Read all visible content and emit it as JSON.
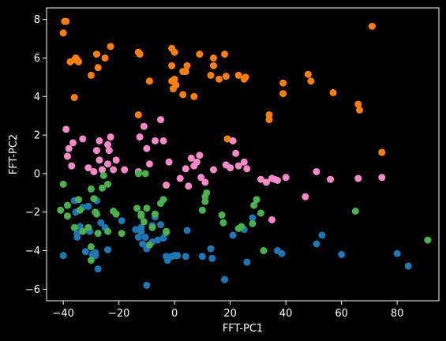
{
  "chart_data": {
    "type": "scatter",
    "xlabel": "FFT-PC1",
    "ylabel": "FFT-PC2",
    "xlim": [
      -46,
      95
    ],
    "ylim": [
      -6.6,
      8.6
    ],
    "xticks": [
      -40,
      -20,
      0,
      20,
      40,
      60,
      80
    ],
    "yticks": [
      -6,
      -4,
      -2,
      0,
      2,
      4,
      6,
      8
    ],
    "xtick_labels": [
      "−40",
      "−20",
      "0",
      "20",
      "40",
      "60",
      "80"
    ],
    "ytick_labels": [
      "−6",
      "−4",
      "−2",
      "0",
      "2",
      "4",
      "6",
      "8"
    ],
    "grid": false,
    "background": "#000000",
    "series": [
      {
        "color": "#ff7f0e",
        "points": [
          [
            -40,
            7.3
          ],
          [
            -39.5,
            7.9
          ],
          [
            -39,
            7.9
          ],
          [
            -37.5,
            5.8
          ],
          [
            -36,
            5.9
          ],
          [
            -35.5,
            6.0
          ],
          [
            -35,
            5.9
          ],
          [
            -34.5,
            5.8
          ],
          [
            -36,
            3.95
          ],
          [
            -30,
            5.1
          ],
          [
            -28,
            6.2
          ],
          [
            -27.5,
            5.5
          ],
          [
            -25,
            6.0
          ],
          [
            -23,
            6.6
          ],
          [
            -13,
            6.3
          ],
          [
            -12.5,
            6.2
          ],
          [
            -9,
            4.8
          ],
          [
            -13,
            3.05
          ],
          [
            -1,
            6.5
          ],
          [
            0,
            6.3
          ],
          [
            -1,
            5.6
          ],
          [
            -1,
            4.8
          ],
          [
            -0.5,
            4.4
          ],
          [
            0,
            4.9
          ],
          [
            0.5,
            4.6
          ],
          [
            3,
            5.3
          ],
          [
            4,
            5.3
          ],
          [
            4.5,
            5.6
          ],
          [
            3,
            4.1
          ],
          [
            7,
            4.0
          ],
          [
            9,
            6.2
          ],
          [
            13,
            5.1
          ],
          [
            14,
            6.0
          ],
          [
            14,
            5.6
          ],
          [
            16,
            4.9
          ],
          [
            18,
            6.2
          ],
          [
            18.5,
            5.05
          ],
          [
            23,
            5.1
          ],
          [
            25,
            4.9
          ],
          [
            25.5,
            5.0
          ],
          [
            34,
            2.8
          ],
          [
            34,
            3.05
          ],
          [
            39,
            4.7
          ],
          [
            39,
            4.15
          ],
          [
            48,
            5.15
          ],
          [
            49,
            4.8
          ],
          [
            57,
            4.2
          ],
          [
            66,
            3.6
          ],
          [
            66.5,
            3.3
          ],
          [
            71,
            7.65
          ],
          [
            74.5,
            1.1
          ],
          [
            19,
            1.8
          ]
        ]
      },
      {
        "color": "#f78ac7",
        "points": [
          [
            -39,
            2.3
          ],
          [
            -38.5,
            0.9
          ],
          [
            -38,
            1.3
          ],
          [
            -37,
            0.4
          ],
          [
            -36.5,
            1.6
          ],
          [
            -33,
            1.8
          ],
          [
            -31,
            0.3
          ],
          [
            -29,
            0.1
          ],
          [
            -28,
            1.2
          ],
          [
            -27,
            1.7
          ],
          [
            -27,
            0.7
          ],
          [
            -26,
            0.2
          ],
          [
            -24,
            0.5
          ],
          [
            -24,
            1.5
          ],
          [
            -23.5,
            1.2
          ],
          [
            -23,
            1.9
          ],
          [
            -22,
            0.2
          ],
          [
            -21,
            0.7
          ],
          [
            -18,
            0.2
          ],
          [
            -13,
            0.1
          ],
          [
            -12.5,
            1.9
          ],
          [
            -11,
            2.45
          ],
          [
            -10,
            1.3
          ],
          [
            -9,
            0.5
          ],
          [
            -7,
            1.7
          ],
          [
            -5,
            2.8
          ],
          [
            -4,
            1.7
          ],
          [
            -3,
            -0.6
          ],
          [
            -2,
            0.6
          ],
          [
            2,
            -0.25
          ],
          [
            4,
            0.25
          ],
          [
            5,
            -0.65
          ],
          [
            6,
            0.8
          ],
          [
            7,
            0.4
          ],
          [
            8,
            0.6
          ],
          [
            9,
            0.95
          ],
          [
            9.5,
            -0.2
          ],
          [
            11,
            -0.45
          ],
          [
            14,
            0.2
          ],
          [
            18.5,
            0.45
          ],
          [
            20,
            0.3
          ],
          [
            21,
            1.7
          ],
          [
            22,
            1.05
          ],
          [
            23,
            0.4
          ],
          [
            25,
            0.6
          ],
          [
            26,
            0.25
          ],
          [
            31,
            -0.3
          ],
          [
            33,
            -0.45
          ],
          [
            35,
            -0.25
          ],
          [
            36,
            -0.3
          ],
          [
            37,
            -0.35
          ],
          [
            40,
            -0.2
          ],
          [
            35,
            -2.4
          ],
          [
            47,
            -1.2
          ],
          [
            51,
            0.1
          ],
          [
            56,
            -0.3
          ],
          [
            66,
            -0.25
          ],
          [
            74.5,
            -0.2
          ]
        ]
      },
      {
        "color": "#1f77b4",
        "points": [
          [
            -40,
            -4.25
          ],
          [
            -36,
            -1.4
          ],
          [
            -35.5,
            -2.0
          ],
          [
            -35,
            -3.1
          ],
          [
            -35,
            -3.3
          ],
          [
            -34,
            -2.75
          ],
          [
            -32,
            -4.05
          ],
          [
            -31,
            -1.7
          ],
          [
            -30.5,
            -3.0
          ],
          [
            -29.5,
            -4.2
          ],
          [
            -28.5,
            -4.1
          ],
          [
            -28.5,
            -4.25
          ],
          [
            -28,
            -1.4
          ],
          [
            -27.5,
            -4.95
          ],
          [
            -26.5,
            -2.55
          ],
          [
            -25,
            -2.8
          ],
          [
            -24,
            -3.95
          ],
          [
            -19,
            -2.45
          ],
          [
            -14,
            -2.9
          ],
          [
            -13,
            -3.3
          ],
          [
            -12,
            -2.8
          ],
          [
            -12,
            -3.0
          ],
          [
            -11.5,
            -3.65
          ],
          [
            -10.5,
            -3.3
          ],
          [
            -10,
            -3.9
          ],
          [
            -10,
            -5.8
          ],
          [
            -8,
            -2.7
          ],
          [
            -8,
            -3.55
          ],
          [
            -7,
            -2.25
          ],
          [
            -6,
            -3.45
          ],
          [
            -5,
            -2.65
          ],
          [
            -4,
            -3.35
          ],
          [
            -3,
            -4.3
          ],
          [
            -2.5,
            -4.5
          ],
          [
            -1,
            -4.3
          ],
          [
            0,
            -4.25
          ],
          [
            1,
            -4.25
          ],
          [
            4.5,
            -2.95
          ],
          [
            4,
            -4.3
          ],
          [
            10,
            -4.3
          ],
          [
            13,
            -3.9
          ],
          [
            13.5,
            -4.4
          ],
          [
            18,
            -5.5
          ],
          [
            21,
            -3.2
          ],
          [
            25,
            -2.9
          ],
          [
            26,
            -4.6
          ],
          [
            28,
            -2.3
          ],
          [
            37,
            -4.0
          ],
          [
            38.5,
            -4.15
          ],
          [
            51,
            -3.65
          ],
          [
            53,
            -3.2
          ],
          [
            60,
            -4.2
          ],
          [
            80,
            -4.15
          ],
          [
            84,
            -4.8
          ],
          [
            -31,
            -2.9
          ],
          [
            -33,
            -1.75
          ]
        ]
      },
      {
        "color": "#4caf50",
        "points": [
          [
            -41,
            -1.9
          ],
          [
            -40,
            -0.55
          ],
          [
            -38.5,
            -2.2
          ],
          [
            -38.5,
            -1.65
          ],
          [
            -36,
            -2.8
          ],
          [
            -34.5,
            -1.35
          ],
          [
            -34,
            -1.9
          ],
          [
            -33,
            -3.0
          ],
          [
            -31,
            -2.8
          ],
          [
            -30,
            -4.5
          ],
          [
            -30,
            -3.8
          ],
          [
            -30,
            -0.8
          ],
          [
            -29,
            -1.3
          ],
          [
            -28.5,
            -2.0
          ],
          [
            -28,
            -2.1
          ],
          [
            -27.5,
            -3.1
          ],
          [
            -26,
            -0.75
          ],
          [
            -25.5,
            -0.1
          ],
          [
            -24,
            -3.0
          ],
          [
            -24,
            -0.55
          ],
          [
            -22,
            -1.95
          ],
          [
            -21,
            -2.1
          ],
          [
            -19,
            -3.1
          ],
          [
            -13.5,
            -1.8
          ],
          [
            -13,
            0.0
          ],
          [
            -12,
            -2.1
          ],
          [
            -12,
            -2.2
          ],
          [
            -11,
            -2.5
          ],
          [
            -10.5,
            0.0
          ],
          [
            -10,
            -1.8
          ],
          [
            -9,
            -3.7
          ],
          [
            -8,
            -2.8
          ],
          [
            -7,
            -2.1
          ],
          [
            -5,
            -1.55
          ],
          [
            -4,
            -1.35
          ],
          [
            -3,
            -3.0
          ],
          [
            -3,
            -3.05
          ],
          [
            11,
            -1.2
          ],
          [
            11.5,
            -1.0
          ],
          [
            11,
            -1.45
          ],
          [
            10,
            -1.9
          ],
          [
            17,
            -2.15
          ],
          [
            17.5,
            -2.55
          ],
          [
            24,
            -2.75
          ],
          [
            23,
            -2.85
          ],
          [
            28.5,
            -1.65
          ],
          [
            29.5,
            -1.35
          ],
          [
            28,
            -2.6
          ],
          [
            31,
            -2.05
          ],
          [
            32,
            -4.0
          ],
          [
            65,
            -1.95
          ],
          [
            91,
            -3.45
          ]
        ]
      }
    ]
  }
}
